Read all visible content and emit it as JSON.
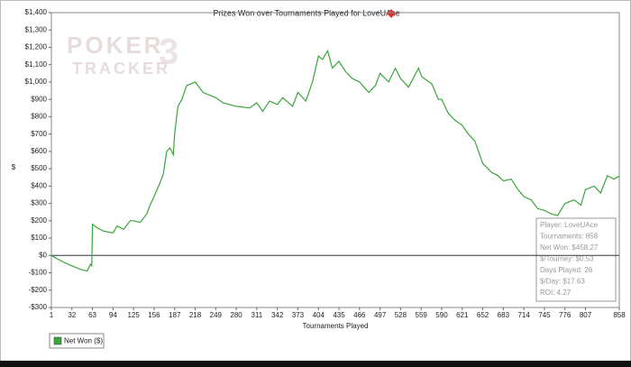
{
  "chart_data": {
    "type": "line",
    "title": "Prizes Won over Tournaments Played for LoveUAce",
    "x_label": "Tournaments Played",
    "y_label": "$",
    "watermark": [
      "POKER",
      "TRACKER",
      "3"
    ],
    "annotations": [
      "Player: LoveUAce",
      "Tournaments: 858",
      "Net Won: $458.27",
      "$/Tourney: $0.53",
      "Days Played: 26",
      "$/Day: $17.63",
      "ROI: 4.27"
    ],
    "legend": "bottom-left",
    "grid": false,
    "xlim": [
      1,
      858
    ],
    "xticks": [
      1,
      32,
      63,
      94,
      125,
      156,
      187,
      218,
      249,
      280,
      311,
      342,
      373,
      404,
      435,
      466,
      497,
      528,
      559,
      590,
      621,
      652,
      683,
      714,
      745,
      776,
      807,
      858
    ],
    "ylim": [
      -300,
      1400
    ],
    "yticks": [
      {
        "value": -300,
        "label": "-$300"
      },
      {
        "value": -200,
        "label": "-$200"
      },
      {
        "value": -100,
        "label": "-$100"
      },
      {
        "value": 0,
        "label": "$0"
      },
      {
        "value": 100,
        "label": "$100"
      },
      {
        "value": 200,
        "label": "$200"
      },
      {
        "value": 300,
        "label": "$300"
      },
      {
        "value": 400,
        "label": "$400"
      },
      {
        "value": 500,
        "label": "$500"
      },
      {
        "value": 600,
        "label": "$600"
      },
      {
        "value": 700,
        "label": "$700"
      },
      {
        "value": 800,
        "label": "$800"
      },
      {
        "value": 900,
        "label": "$900"
      },
      {
        "value": 1000,
        "label": "$1,000"
      },
      {
        "value": 1100,
        "label": "$1,100"
      },
      {
        "value": 1200,
        "label": "$1,200"
      },
      {
        "value": 1300,
        "label": "$1,300"
      },
      {
        "value": 1400,
        "label": "$1,400"
      }
    ],
    "x": [
      1,
      10,
      20,
      32,
      45,
      55,
      60,
      62,
      63,
      70,
      80,
      94,
      100,
      110,
      120,
      125,
      135,
      145,
      150,
      156,
      165,
      170,
      175,
      180,
      185,
      187,
      192,
      198,
      205,
      212,
      218,
      230,
      249,
      260,
      280,
      300,
      311,
      320,
      330,
      342,
      350,
      365,
      373,
      385,
      395,
      404,
      410,
      418,
      425,
      435,
      445,
      455,
      466,
      480,
      490,
      497,
      510,
      520,
      528,
      540,
      555,
      560,
      575,
      585,
      590,
      600,
      610,
      621,
      630,
      640,
      652,
      665,
      675,
      683,
      695,
      705,
      714,
      725,
      735,
      745,
      755,
      765,
      776,
      790,
      800,
      807,
      820,
      830,
      840,
      850,
      858
    ],
    "series": [
      {
        "name": "Net Won ($)",
        "color": "#3aa53a",
        "values": [
          0,
          -20,
          -40,
          -60,
          -80,
          -90,
          -50,
          -60,
          180,
          160,
          140,
          130,
          170,
          150,
          200,
          200,
          190,
          240,
          290,
          340,
          420,
          470,
          600,
          620,
          580,
          700,
          860,
          900,
          980,
          990,
          1000,
          940,
          910,
          880,
          860,
          850,
          880,
          830,
          890,
          870,
          910,
          860,
          940,
          890,
          1000,
          1150,
          1130,
          1180,
          1080,
          1120,
          1060,
          1020,
          1000,
          940,
          980,
          1050,
          1000,
          1080,
          1020,
          970,
          1080,
          1030,
          990,
          900,
          900,
          820,
          780,
          750,
          700,
          660,
          530,
          480,
          460,
          430,
          440,
          380,
          340,
          320,
          270,
          260,
          240,
          230,
          300,
          320,
          290,
          380,
          400,
          360,
          460,
          440,
          458
        ]
      }
    ]
  }
}
